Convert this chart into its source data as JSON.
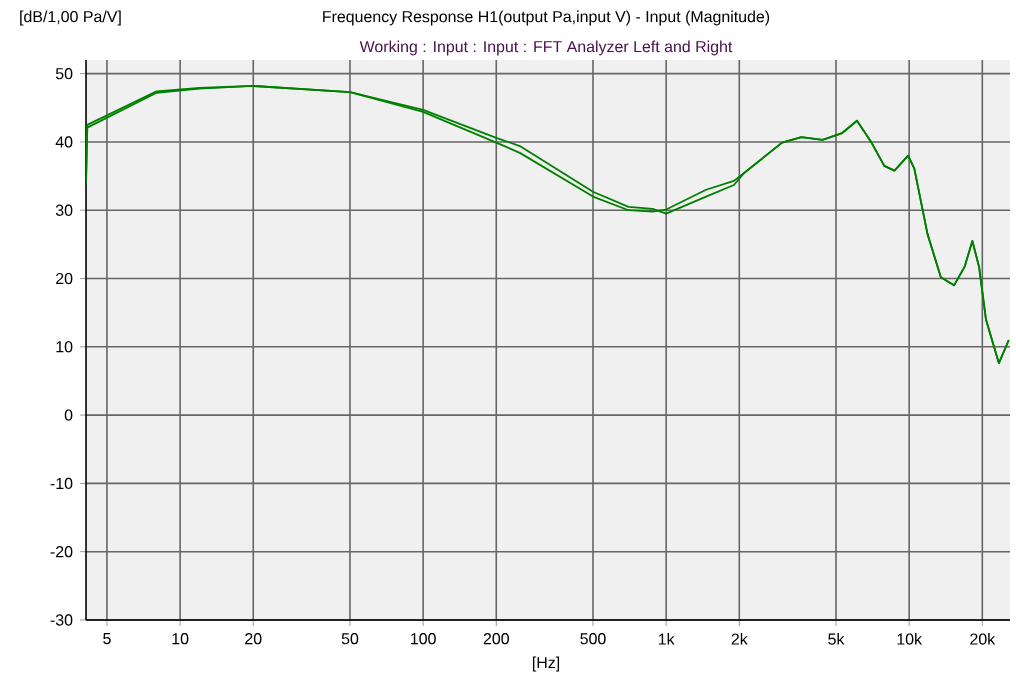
{
  "chart_data": {
    "type": "line",
    "title": "Frequency Response H1(output Pa,input V) - Input (Magnitude)",
    "subtitle": "Working : Input : Input : FFT Analyzer Left and Right",
    "ylabel": "[dB/1,00 Pa/V]",
    "xlabel": "[Hz]",
    "log": "x",
    "grid": true,
    "marker": "none",
    "line_style": "solid",
    "xlim": [
      4.1,
      26000
    ],
    "ylim": [
      -30,
      52
    ],
    "xticks": [
      5,
      10,
      20,
      50,
      100,
      200,
      500,
      {
        "value": 1000,
        "label": "1k"
      },
      {
        "value": 2000,
        "label": "2k"
      },
      {
        "value": 5000,
        "label": "5k"
      },
      {
        "value": 10000,
        "label": "10k"
      },
      {
        "value": 20000,
        "label": "20k"
      }
    ],
    "yticks": [
      -30,
      -20,
      -10,
      0,
      10,
      20,
      30,
      40,
      50
    ],
    "series": [
      {
        "color": "#008000",
        "x": [
          4.1,
          4.15,
          8,
          12,
          20,
          50,
          100,
          200,
          250,
          500,
          700,
          880,
          1000,
          1460,
          1900,
          2100,
          3000,
          3600,
          4400,
          5300,
          6100,
          7000,
          7900,
          8700,
          9900,
          10500,
          11900,
          13500,
          15300,
          16900,
          18200,
          19400,
          20700,
          23400,
          25700
        ],
        "values": [
          34,
          42.5,
          47.4,
          47.9,
          48.2,
          47.3,
          44.7,
          40.6,
          39.4,
          32.7,
          30.5,
          30.2,
          29.5,
          32.0,
          33.7,
          35.5,
          39.9,
          40.7,
          40.3,
          41.3,
          43.1,
          39.9,
          36.5,
          35.8,
          38.0,
          36.1,
          26.5,
          20.2,
          19.0,
          21.7,
          25.5,
          21.7,
          14.0,
          7.6,
          11.0
        ]
      },
      {
        "color": "#008000",
        "x": [
          4.1,
          4.15,
          8,
          12,
          20,
          50,
          100,
          200,
          250,
          500,
          700,
          880,
          1000,
          1460,
          1900,
          2100,
          3000,
          3600,
          4400,
          5300,
          6100,
          7000,
          7900,
          8700,
          9900,
          10500,
          11900,
          13500,
          15300,
          16900,
          18200,
          19400,
          20700,
          23400,
          25700
        ],
        "values": [
          34,
          42.1,
          47.2,
          47.8,
          48.2,
          47.3,
          44.4,
          39.9,
          38.4,
          32.0,
          30.0,
          29.8,
          30.1,
          33.0,
          34.3,
          35.5,
          39.9,
          40.7,
          40.3,
          41.3,
          43.1,
          39.9,
          36.5,
          35.8,
          38.0,
          36.1,
          26.5,
          20.2,
          19.0,
          21.7,
          25.5,
          21.7,
          14.0,
          7.6,
          11.0
        ]
      }
    ]
  }
}
